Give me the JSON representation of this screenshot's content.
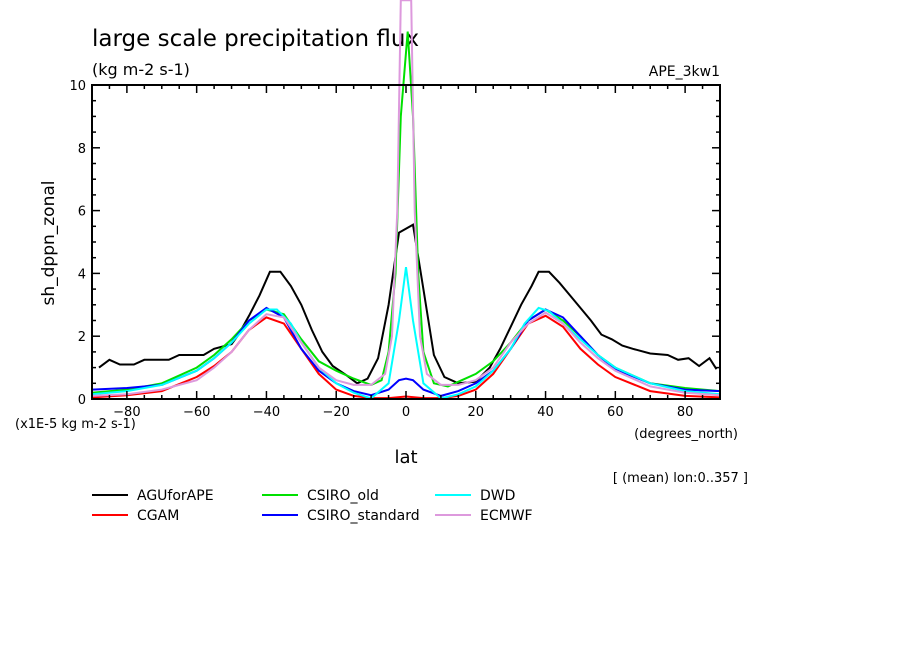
{
  "chart_data": {
    "type": "line",
    "title": "large scale precipitation flux",
    "subtitle": "(kg m-2 s-1)",
    "dataset_label": "APE_3kw1",
    "xlabel": "lat",
    "xunits": "(degrees_north)",
    "ylabel": "sh_dppn_zonal",
    "yunits": "(x1E-5 kg m-2 s-1)",
    "note": "[ (mean) lon:0..357 ]",
    "xlim": [
      -90,
      90
    ],
    "ylim": [
      0,
      10
    ],
    "xticks": [
      -80,
      -60,
      -40,
      -20,
      0,
      20,
      40,
      60,
      80
    ],
    "yticks": [
      0,
      2,
      4,
      6,
      8,
      10
    ],
    "grid": false,
    "legend_placement": "bottom",
    "series": [
      {
        "name": "AGUforAPE",
        "color": "#000000",
        "x": [
          -88,
          -85,
          -82,
          -78,
          -75,
          -68,
          -65,
          -58,
          -55,
          -50,
          -48,
          -45,
          -42,
          -39,
          -36,
          -33,
          -30,
          -27,
          -24,
          -21,
          -17,
          -14,
          -11,
          -8,
          -5,
          -2,
          2,
          5,
          8,
          11,
          15,
          20,
          24,
          27,
          30,
          33,
          36,
          38,
          41,
          44,
          47,
          50,
          53,
          56,
          59,
          62,
          65,
          70,
          75,
          78,
          81,
          84,
          87,
          89
        ],
        "y": [
          1.0,
          1.25,
          1.1,
          1.1,
          1.25,
          1.25,
          1.4,
          1.4,
          1.6,
          1.75,
          2.05,
          2.65,
          3.3,
          4.05,
          4.05,
          3.6,
          3.0,
          2.2,
          1.5,
          1.05,
          0.75,
          0.5,
          0.65,
          1.3,
          3.0,
          5.3,
          5.55,
          3.5,
          1.4,
          0.7,
          0.5,
          0.55,
          1.0,
          1.6,
          2.3,
          3.0,
          3.6,
          4.05,
          4.05,
          3.7,
          3.3,
          2.9,
          2.5,
          2.05,
          1.9,
          1.7,
          1.6,
          1.45,
          1.4,
          1.25,
          1.3,
          1.05,
          1.3,
          0.95
        ]
      },
      {
        "name": "CGAM",
        "color": "#ff0000",
        "x": [
          -90,
          -80,
          -70,
          -60,
          -55,
          -50,
          -45,
          -40,
          -35,
          -30,
          -25,
          -20,
          -15,
          -10,
          -5,
          0,
          5,
          10,
          15,
          20,
          25,
          30,
          35,
          40,
          45,
          50,
          55,
          60,
          70,
          80,
          90
        ],
        "y": [
          0.05,
          0.12,
          0.25,
          0.7,
          1.05,
          1.5,
          2.2,
          2.6,
          2.4,
          1.6,
          0.8,
          0.3,
          0.1,
          0.03,
          0.03,
          0.08,
          0.03,
          0.03,
          0.1,
          0.3,
          0.8,
          1.6,
          2.4,
          2.65,
          2.3,
          1.6,
          1.1,
          0.7,
          0.25,
          0.1,
          0.05
        ]
      },
      {
        "name": "CSIRO_old",
        "color": "#00e000",
        "x": [
          -90,
          -80,
          -70,
          -60,
          -55,
          -50,
          -45,
          -40,
          -35,
          -30,
          -25,
          -20,
          -15,
          -10,
          -7,
          -5,
          -3,
          -1.5,
          0.5,
          2,
          3.5,
          5,
          8,
          12,
          16,
          20,
          25,
          30,
          35,
          40,
          45,
          50,
          55,
          60,
          70,
          80,
          90
        ],
        "y": [
          0.2,
          0.3,
          0.5,
          1.0,
          1.4,
          1.9,
          2.5,
          2.85,
          2.7,
          1.9,
          1.2,
          0.9,
          0.65,
          0.45,
          0.6,
          1.5,
          4.0,
          9.0,
          11.7,
          9.0,
          4.0,
          1.5,
          0.5,
          0.4,
          0.6,
          0.8,
          1.2,
          1.8,
          2.5,
          2.85,
          2.5,
          2.0,
          1.4,
          1.0,
          0.5,
          0.35,
          0.25
        ]
      },
      {
        "name": "CSIRO_standard",
        "color": "#0000ff",
        "x": [
          -90,
          -80,
          -70,
          -60,
          -55,
          -50,
          -45,
          -40,
          -35,
          -30,
          -25,
          -20,
          -15,
          -10,
          -5,
          -2,
          0,
          2,
          5,
          10,
          15,
          20,
          25,
          30,
          35,
          40,
          45,
          50,
          55,
          60,
          70,
          80,
          90
        ],
        "y": [
          0.3,
          0.35,
          0.45,
          0.9,
          1.3,
          1.8,
          2.5,
          2.9,
          2.6,
          1.6,
          0.9,
          0.5,
          0.25,
          0.12,
          0.3,
          0.6,
          0.65,
          0.6,
          0.3,
          0.1,
          0.25,
          0.5,
          0.9,
          1.6,
          2.5,
          2.85,
          2.6,
          2.0,
          1.4,
          0.95,
          0.5,
          0.3,
          0.25
        ]
      },
      {
        "name": "DWD",
        "color": "#00ffff",
        "x": [
          -90,
          -80,
          -70,
          -60,
          -55,
          -50,
          -45,
          -40,
          -37,
          -33,
          -30,
          -25,
          -20,
          -15,
          -10,
          -5,
          -2,
          0,
          2,
          5,
          10,
          15,
          20,
          25,
          30,
          34,
          38,
          41,
          45,
          50,
          55,
          60,
          70,
          80,
          90
        ],
        "y": [
          0.15,
          0.25,
          0.45,
          0.9,
          1.3,
          1.8,
          2.4,
          2.85,
          2.85,
          2.4,
          1.8,
          1.0,
          0.5,
          0.2,
          0.02,
          0.5,
          2.5,
          4.2,
          2.5,
          0.5,
          0.02,
          0.15,
          0.4,
          0.9,
          1.6,
          2.4,
          2.9,
          2.8,
          2.4,
          1.9,
          1.4,
          1.0,
          0.5,
          0.25,
          0.15
        ]
      },
      {
        "name": "ECMWF",
        "color": "#dd99dd",
        "x": [
          -90,
          -80,
          -70,
          -60,
          -55,
          -50,
          -45,
          -40,
          -35,
          -30,
          -25,
          -20,
          -15,
          -10,
          -6,
          -4,
          -2.5,
          -1.5,
          1.5,
          2.5,
          4,
          6,
          10,
          15,
          20,
          25,
          30,
          35,
          40,
          45,
          50,
          55,
          60,
          70,
          80,
          90
        ],
        "y": [
          0.1,
          0.15,
          0.3,
          0.6,
          1.0,
          1.5,
          2.2,
          2.7,
          2.6,
          1.8,
          1.0,
          0.6,
          0.45,
          0.45,
          0.8,
          2.0,
          6.0,
          12.7,
          12.7,
          6.0,
          2.0,
          0.8,
          0.45,
          0.45,
          0.6,
          1.0,
          1.8,
          2.4,
          2.75,
          2.4,
          1.8,
          1.3,
          0.9,
          0.4,
          0.2,
          0.12
        ]
      }
    ]
  }
}
